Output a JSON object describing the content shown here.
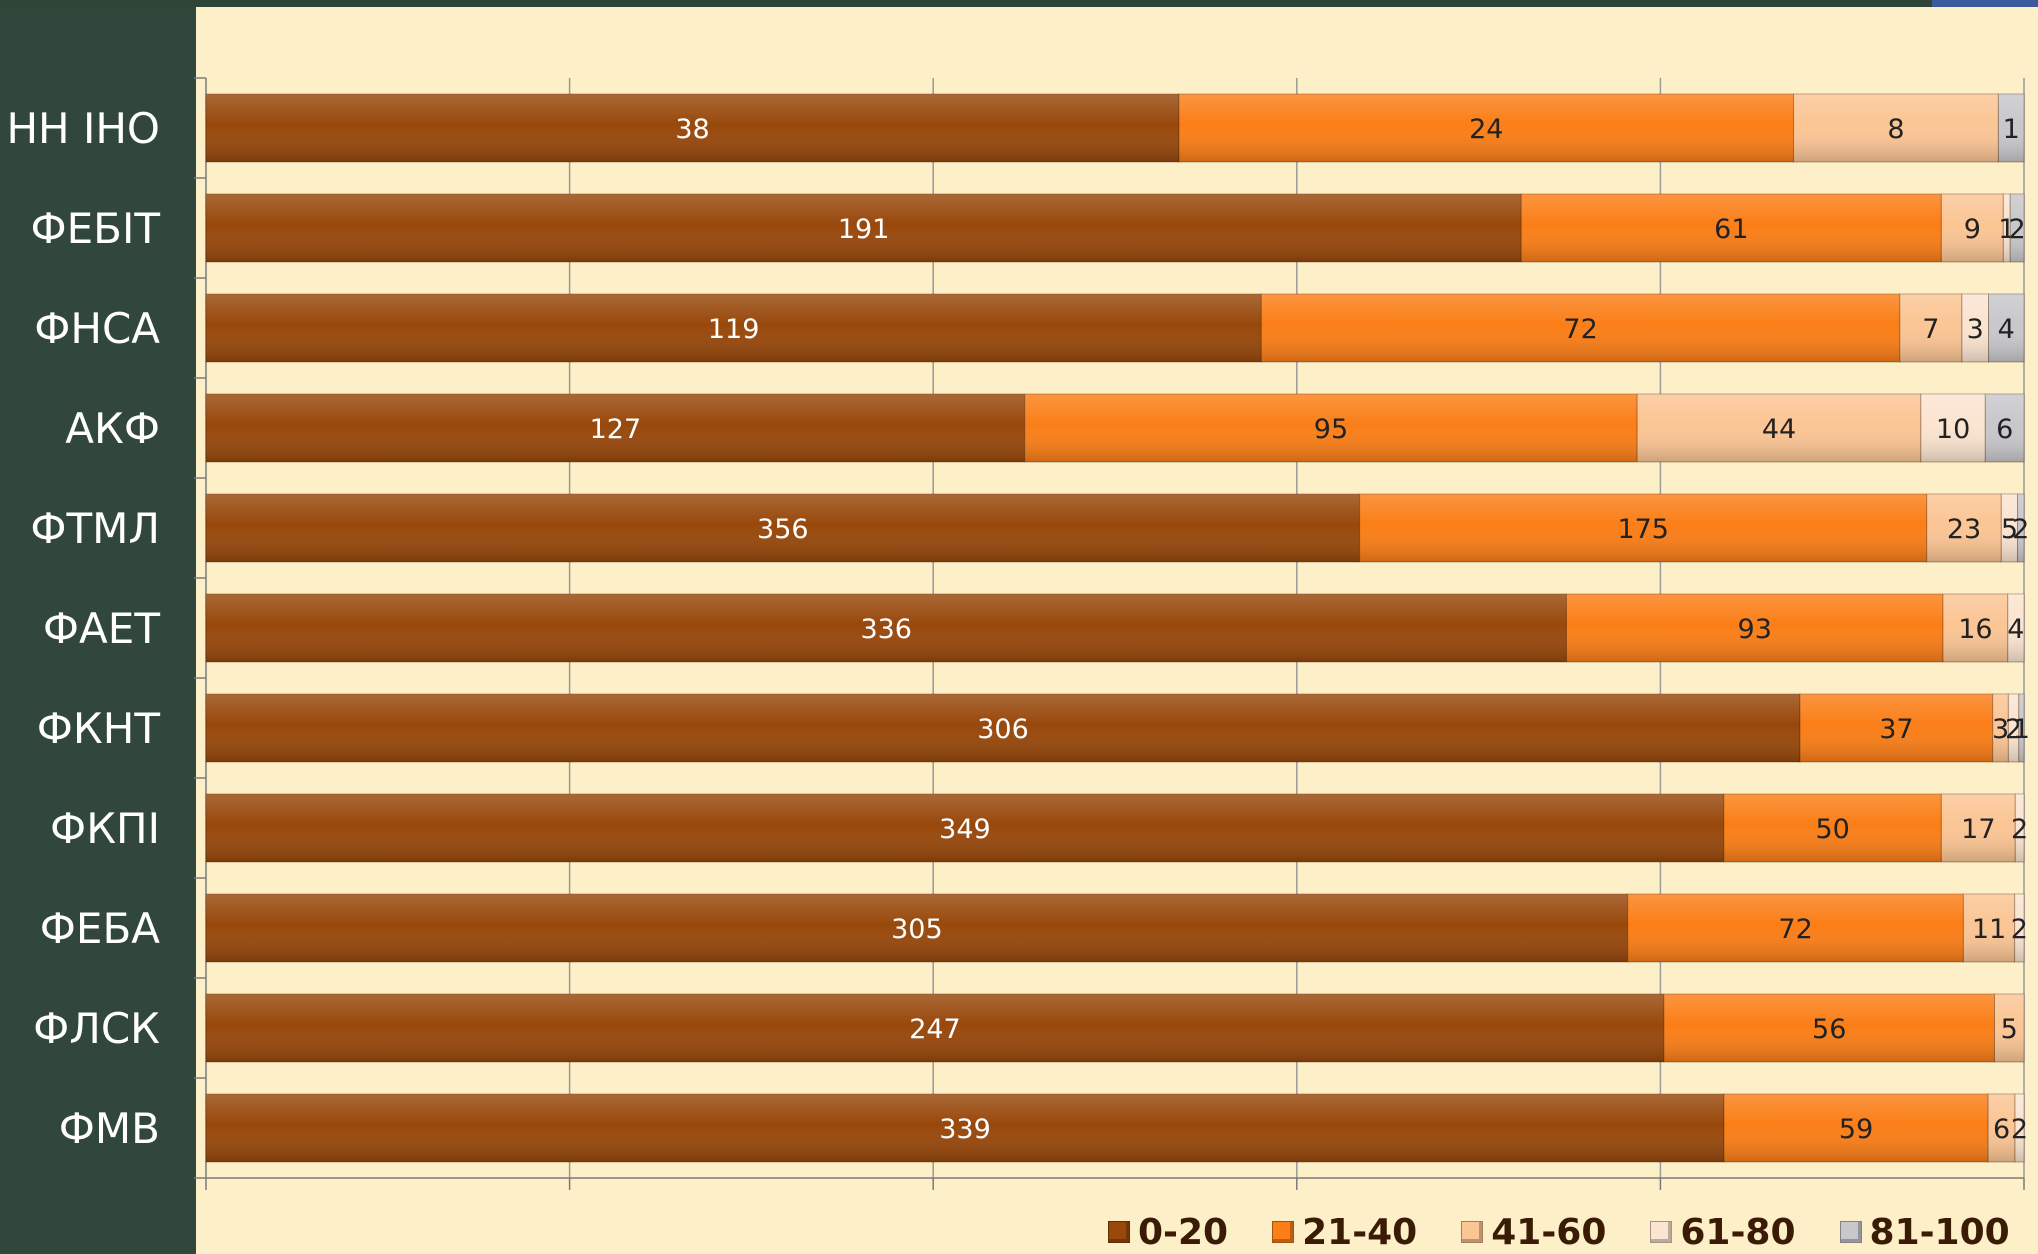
{
  "chart_data": {
    "type": "bar",
    "orientation": "horizontal",
    "stacked": "percent",
    "categories": [
      "НН ІНО",
      "ФЕБІТ",
      "ФНСА",
      "АКФ",
      "ФТМЛ",
      "ФАЕТ",
      "ФКНТ",
      "ФКПІ",
      "ФЕБА",
      "ФЛСК",
      "ФМВ"
    ],
    "series": [
      {
        "name": "0-20",
        "color": "#98480b",
        "values": [
          38,
          191,
          119,
          127,
          356,
          336,
          306,
          349,
          305,
          247,
          339
        ]
      },
      {
        "name": "21-40",
        "color": "#fb7e17",
        "values": [
          24,
          61,
          72,
          95,
          175,
          93,
          37,
          50,
          72,
          56,
          59
        ]
      },
      {
        "name": "41-60",
        "color": "#fbc594",
        "values": [
          8,
          9,
          7,
          44,
          23,
          16,
          3,
          17,
          11,
          5,
          6
        ]
      },
      {
        "name": "61-80",
        "color": "#fbe4d0",
        "values": [
          0,
          1,
          3,
          10,
          5,
          4,
          2,
          2,
          2,
          0,
          2
        ]
      },
      {
        "name": "81-100",
        "color": "#c8c8cc",
        "values": [
          1,
          2,
          4,
          6,
          2,
          0,
          1,
          0,
          0,
          0,
          0
        ]
      }
    ],
    "xlim": [
      0,
      100
    ],
    "grid": true,
    "legend_position": "bottom-right"
  }
}
